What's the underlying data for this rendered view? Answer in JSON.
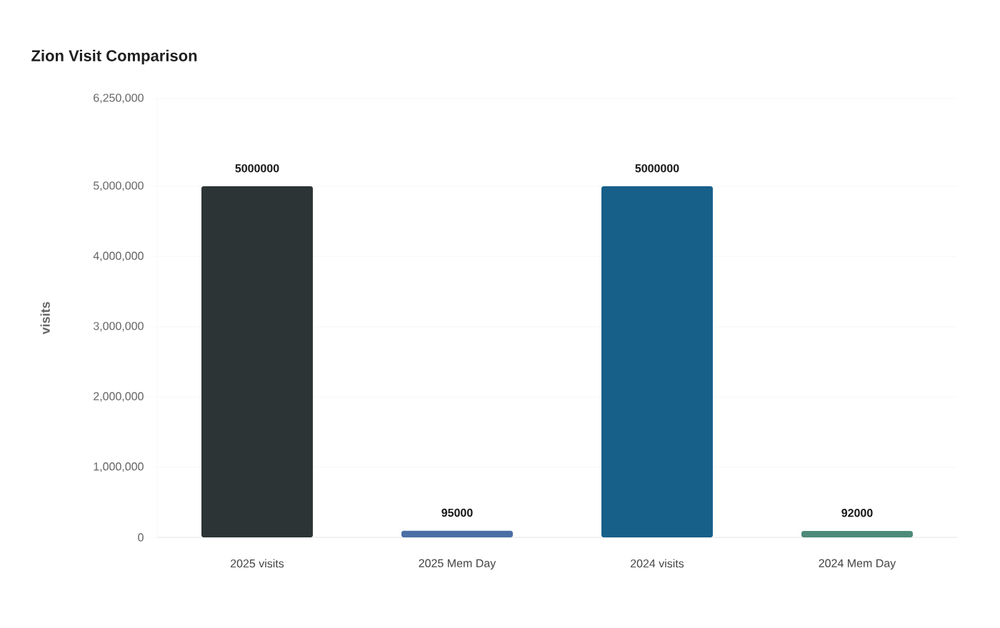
{
  "chart_data": {
    "type": "bar",
    "title": "Zion Visit Comparison",
    "ylabel": "visits",
    "categories": [
      "2025 visits",
      "2025 Mem Day",
      "2024 visits",
      "2024 Mem Day"
    ],
    "values": [
      5000000,
      95000,
      5000000,
      92000
    ],
    "colors": [
      "#2d3436",
      "#4a6fa5",
      "#17608a",
      "#4e8a7a"
    ],
    "ylim": [
      0,
      6250000
    ],
    "yticks": [
      {
        "value": 0,
        "label": "0"
      },
      {
        "value": 1000000,
        "label": "1,000,000"
      },
      {
        "value": 2000000,
        "label": "2,000,000"
      },
      {
        "value": 3000000,
        "label": "3,000,000"
      },
      {
        "value": 4000000,
        "label": "4,000,000"
      },
      {
        "value": 5000000,
        "label": "5,000,000"
      },
      {
        "value": 6250000,
        "label": "6,250,000"
      }
    ],
    "grid": "y",
    "data_labels": true
  }
}
